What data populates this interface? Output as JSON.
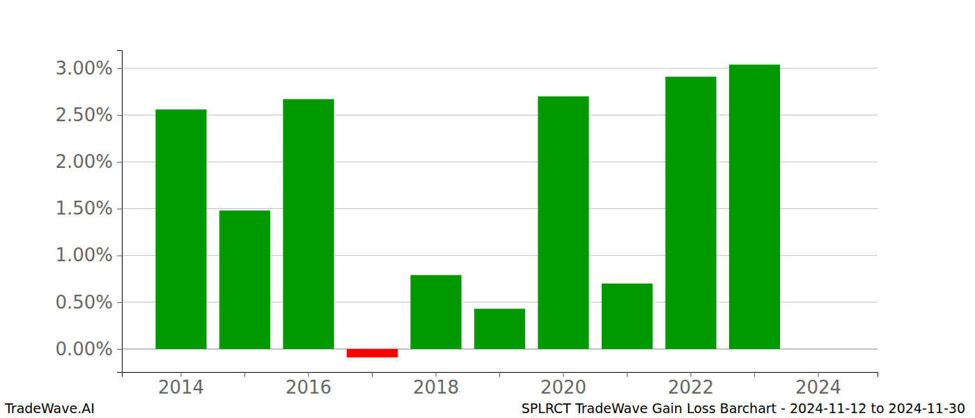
{
  "chart_data": {
    "type": "bar",
    "title": "SPLRCT TradeWave Gain Loss Barchart - 2024-11-12 to 2024-11-30",
    "annotations": [
      "TradeWave.AI"
    ],
    "categories": [
      "2014",
      null,
      "2016",
      null,
      "2018",
      null,
      "2020",
      null,
      "2022",
      null,
      "2024"
    ],
    "values": [
      2.56,
      1.48,
      2.67,
      -0.09,
      0.79,
      0.43,
      2.7,
      0.7,
      2.91,
      3.04,
      0
    ],
    "colors": [
      "#009900",
      "#009900",
      "#009900",
      "#ff0000",
      "#009900",
      "#009900",
      "#009900",
      "#009900",
      "#009900",
      "#009900",
      "#009900"
    ],
    "ylim": [
      -0.246,
      3.194
    ],
    "yticks": [
      {
        "value": 0,
        "label": "0.00%"
      },
      {
        "value": 0.5,
        "label": "0.50%"
      },
      {
        "value": 1,
        "label": "1.00%"
      },
      {
        "value": 1.5,
        "label": "1.50%"
      },
      {
        "value": 2,
        "label": "2.00%"
      },
      {
        "value": 2.5,
        "label": "2.50%"
      },
      {
        "value": 3,
        "label": "3.00%"
      }
    ],
    "grid": true
  }
}
